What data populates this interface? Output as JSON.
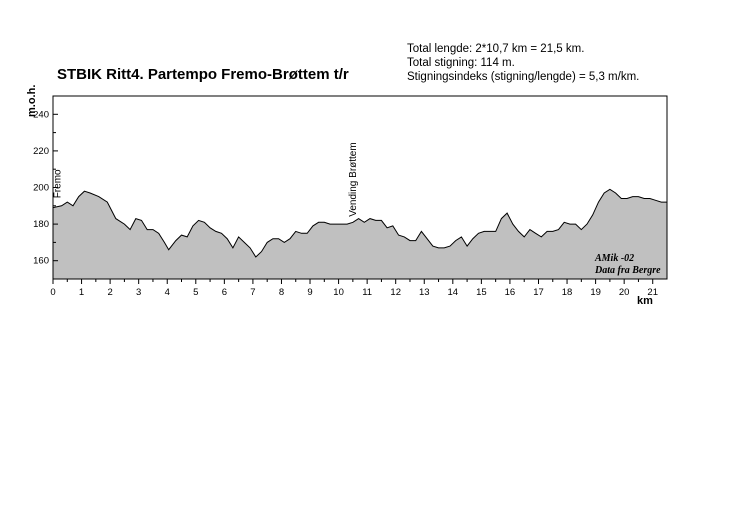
{
  "chart_data": {
    "type": "area",
    "title": "STBIK Ritt4. Partempo Fremo-Brøttem t/r",
    "info_lines": [
      "Total lengde: 2*10,7 km = 21,5 km.",
      "Total stigning:  114 m.",
      "Stigningsindeks (stigning/lengde) = 5,3 m/km."
    ],
    "xlabel": "km",
    "ylabel": "m.o.h.",
    "xlim": [
      0,
      21.5
    ],
    "ylim": [
      150,
      250
    ],
    "x_ticks": [
      "0",
      "1",
      "2",
      "3",
      "4",
      "5",
      "6",
      "7",
      "8",
      "9",
      "10",
      "11",
      "12",
      "13",
      "14",
      "15",
      "16",
      "17",
      "18",
      "19",
      "20",
      "21"
    ],
    "y_ticks": [
      "160",
      "180",
      "200",
      "220",
      "240"
    ],
    "annotations": [
      {
        "text": "Fremo",
        "x": 0.2
      },
      {
        "text": "Vending Brøttem",
        "x": 10.5
      }
    ],
    "credit_lines": [
      "AMik -02",
      "Data fra Bergre"
    ],
    "fill_color": "#c0c0c0",
    "line_color": "#000000",
    "x": [
      0,
      0.3,
      0.5,
      0.7,
      0.9,
      1.1,
      1.3,
      1.6,
      1.9,
      2.2,
      2.5,
      2.7,
      2.9,
      3.1,
      3.3,
      3.5,
      3.7,
      3.9,
      4.05,
      4.3,
      4.5,
      4.7,
      4.9,
      5.1,
      5.3,
      5.5,
      5.7,
      5.9,
      6.1,
      6.3,
      6.5,
      6.7,
      6.9,
      7.1,
      7.3,
      7.5,
      7.7,
      7.9,
      8.1,
      8.3,
      8.5,
      8.7,
      8.9,
      9.1,
      9.3,
      9.5,
      9.7,
      9.9,
      10.1,
      10.3,
      10.5,
      10.7,
      10.9,
      11.1,
      11.3,
      11.5,
      11.7,
      11.9,
      12.1,
      12.3,
      12.5,
      12.7,
      12.9,
      13.1,
      13.3,
      13.5,
      13.7,
      13.9,
      14.1,
      14.3,
      14.5,
      14.7,
      14.9,
      15.1,
      15.3,
      15.5,
      15.7,
      15.9,
      16.1,
      16.3,
      16.5,
      16.7,
      16.9,
      17.1,
      17.3,
      17.5,
      17.7,
      17.9,
      18.1,
      18.3,
      18.5,
      18.7,
      18.9,
      19.1,
      19.3,
      19.5,
      19.7,
      19.9,
      20.1,
      20.3,
      20.5,
      20.7,
      20.9,
      21.1,
      21.3,
      21.5
    ],
    "values": [
      189,
      190,
      192,
      190,
      195,
      198,
      197,
      195,
      192,
      183,
      180,
      177,
      183,
      182,
      177,
      177,
      175,
      170,
      166,
      171,
      174,
      173,
      179,
      182,
      181,
      178,
      176,
      175,
      172,
      167,
      173,
      170,
      167,
      162,
      165,
      170,
      172,
      172,
      170,
      172,
      176,
      175,
      175,
      179,
      181,
      181,
      180,
      180,
      180,
      180,
      181,
      183,
      181,
      183,
      182,
      182,
      178,
      179,
      174,
      173,
      171,
      171,
      176,
      172,
      168,
      167,
      167,
      168,
      171,
      173,
      168,
      172,
      175,
      176,
      176,
      176,
      183,
      186,
      180,
      176,
      173,
      177,
      175,
      173,
      176,
      176,
      177,
      181,
      180,
      180,
      177,
      180,
      185,
      192,
      197,
      199,
      197,
      194,
      194,
      195,
      195,
      194,
      194,
      193,
      192,
      192
    ]
  }
}
